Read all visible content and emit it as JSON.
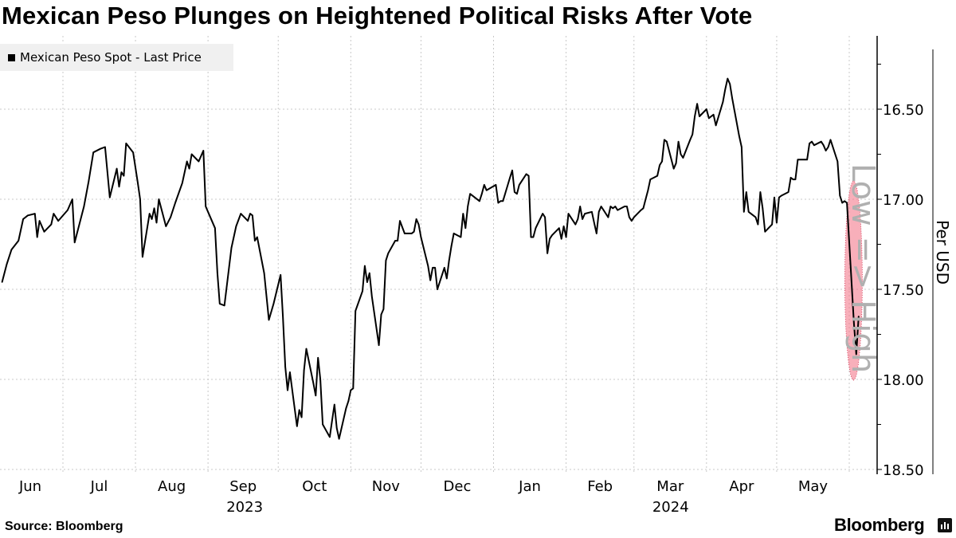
{
  "title": "Mexican Peso Plunges on Heightened Political Risks After Vote",
  "source": "Source: Bloomberg",
  "brand": "Bloomberg",
  "chart_data": {
    "type": "line",
    "title": "Mexican Peso Plunges on Heightened Political Risks After Vote",
    "ylabel": "Per USD",
    "y_direction_note": "Low => High",
    "y_inverted": true,
    "ylim": [
      16.09,
      18.51
    ],
    "yticks": [
      "16.50",
      "17.00",
      "17.50",
      "18.00",
      "18.50"
    ],
    "ytick_values": [
      16.5,
      17.0,
      17.5,
      18.0,
      18.5
    ],
    "xtick_labels": [
      "Jun",
      "Jul",
      "Aug",
      "Sep",
      "Oct",
      "Nov",
      "Dec",
      "Jan",
      "Feb",
      "Mar",
      "Apr",
      "May"
    ],
    "xtick_months": [
      "2023-06",
      "2023-07",
      "2023-08",
      "2023-09",
      "2023-10",
      "2023-11",
      "2023-12",
      "2024-01",
      "2024-02",
      "2024-03",
      "2024-04",
      "2024-05"
    ],
    "year_labels": [
      {
        "label": "2023",
        "month": "2023-09"
      },
      {
        "label": "2024",
        "month": "2024-03"
      }
    ],
    "grid": true,
    "legend": {
      "position": "top-left",
      "entries": [
        "Mexican Peso Spot - Last Price"
      ]
    },
    "highlight": {
      "from": "2024-05-31",
      "to": "2024-06-05",
      "color": "#f47a8c"
    },
    "line_color": "#000000",
    "series": [
      {
        "name": "Mexican Peso Spot - Last Price",
        "points": [
          [
            "2023-06-05",
            17.46
          ],
          [
            "2023-06-07",
            17.36
          ],
          [
            "2023-06-09",
            17.28
          ],
          [
            "2023-06-12",
            17.23
          ],
          [
            "2023-06-14",
            17.11
          ],
          [
            "2023-06-16",
            17.09
          ],
          [
            "2023-06-19",
            17.08
          ],
          [
            "2023-06-20",
            17.21
          ],
          [
            "2023-06-21",
            17.12
          ],
          [
            "2023-06-23",
            17.18
          ],
          [
            "2023-06-26",
            17.14
          ],
          [
            "2023-06-27",
            17.08
          ],
          [
            "2023-06-29",
            17.12
          ],
          [
            "2023-07-03",
            17.06
          ],
          [
            "2023-07-05",
            17.0
          ],
          [
            "2023-07-06",
            17.24
          ],
          [
            "2023-07-10",
            17.04
          ],
          [
            "2023-07-12",
            16.9
          ],
          [
            "2023-07-14",
            16.74
          ],
          [
            "2023-07-17",
            16.72
          ],
          [
            "2023-07-19",
            16.71
          ],
          [
            "2023-07-21",
            16.99
          ],
          [
            "2023-07-24",
            16.83
          ],
          [
            "2023-07-25",
            16.93
          ],
          [
            "2023-07-26",
            16.85
          ],
          [
            "2023-07-27",
            16.87
          ],
          [
            "2023-07-28",
            16.69
          ],
          [
            "2023-07-31",
            16.74
          ],
          [
            "2023-08-02",
            16.91
          ],
          [
            "2023-08-03",
            17.0
          ],
          [
            "2023-08-04",
            17.32
          ],
          [
            "2023-08-07",
            17.08
          ],
          [
            "2023-08-08",
            17.11
          ],
          [
            "2023-08-09",
            17.05
          ],
          [
            "2023-08-10",
            17.13
          ],
          [
            "2023-08-11",
            17.0
          ],
          [
            "2023-08-14",
            17.15
          ],
          [
            "2023-08-16",
            17.1
          ],
          [
            "2023-08-18",
            17.02
          ],
          [
            "2023-08-21",
            16.91
          ],
          [
            "2023-08-23",
            16.79
          ],
          [
            "2023-08-24",
            16.83
          ],
          [
            "2023-08-25",
            16.75
          ],
          [
            "2023-08-28",
            16.79
          ],
          [
            "2023-08-30",
            16.73
          ],
          [
            "2023-08-31",
            17.04
          ],
          [
            "2023-09-01",
            17.07
          ],
          [
            "2023-09-04",
            17.16
          ],
          [
            "2023-09-05",
            17.41
          ],
          [
            "2023-09-06",
            17.58
          ],
          [
            "2023-09-08",
            17.59
          ],
          [
            "2023-09-11",
            17.27
          ],
          [
            "2023-09-13",
            17.15
          ],
          [
            "2023-09-15",
            17.08
          ],
          [
            "2023-09-18",
            17.12
          ],
          [
            "2023-09-19",
            17.08
          ],
          [
            "2023-09-20",
            17.09
          ],
          [
            "2023-09-21",
            17.23
          ],
          [
            "2023-09-22",
            17.21
          ],
          [
            "2023-09-25",
            17.41
          ],
          [
            "2023-09-27",
            17.67
          ],
          [
            "2023-09-29",
            17.58
          ],
          [
            "2023-10-02",
            17.42
          ],
          [
            "2023-10-03",
            17.65
          ],
          [
            "2023-10-04",
            17.93
          ],
          [
            "2023-10-05",
            18.06
          ],
          [
            "2023-10-06",
            17.96
          ],
          [
            "2023-10-09",
            18.26
          ],
          [
            "2023-10-10",
            18.17
          ],
          [
            "2023-10-11",
            18.21
          ],
          [
            "2023-10-12",
            17.95
          ],
          [
            "2023-10-13",
            17.83
          ],
          [
            "2023-10-16",
            18.02
          ],
          [
            "2023-10-17",
            18.09
          ],
          [
            "2023-10-18",
            17.88
          ],
          [
            "2023-10-19",
            18.0
          ],
          [
            "2023-10-20",
            18.25
          ],
          [
            "2023-10-23",
            18.32
          ],
          [
            "2023-10-24",
            18.23
          ],
          [
            "2023-10-25",
            18.14
          ],
          [
            "2023-10-26",
            18.27
          ],
          [
            "2023-10-27",
            18.33
          ],
          [
            "2023-10-30",
            18.16
          ],
          [
            "2023-10-31",
            18.12
          ],
          [
            "2023-11-01",
            18.06
          ],
          [
            "2023-11-02",
            18.05
          ],
          [
            "2023-11-03",
            17.62
          ],
          [
            "2023-11-06",
            17.51
          ],
          [
            "2023-11-07",
            17.37
          ],
          [
            "2023-11-08",
            17.46
          ],
          [
            "2023-11-09",
            17.41
          ],
          [
            "2023-11-10",
            17.54
          ],
          [
            "2023-11-13",
            17.81
          ],
          [
            "2023-11-14",
            17.64
          ],
          [
            "2023-11-15",
            17.61
          ],
          [
            "2023-11-16",
            17.34
          ],
          [
            "2023-11-17",
            17.3
          ],
          [
            "2023-11-20",
            17.23
          ],
          [
            "2023-11-21",
            17.23
          ],
          [
            "2023-11-22",
            17.12
          ],
          [
            "2023-11-24",
            17.19
          ],
          [
            "2023-11-27",
            17.19
          ],
          [
            "2023-11-28",
            17.18
          ],
          [
            "2023-11-29",
            17.11
          ],
          [
            "2023-11-30",
            17.14
          ],
          [
            "2023-12-01",
            17.21
          ],
          [
            "2023-12-04",
            17.37
          ],
          [
            "2023-12-05",
            17.45
          ],
          [
            "2023-12-06",
            17.38
          ],
          [
            "2023-12-07",
            17.38
          ],
          [
            "2023-12-08",
            17.5
          ],
          [
            "2023-12-11",
            17.38
          ],
          [
            "2023-12-12",
            17.44
          ],
          [
            "2023-12-13",
            17.34
          ],
          [
            "2023-12-14",
            17.26
          ],
          [
            "2023-12-15",
            17.19
          ],
          [
            "2023-12-18",
            17.21
          ],
          [
            "2023-12-19",
            17.08
          ],
          [
            "2023-12-20",
            17.16
          ],
          [
            "2023-12-21",
            17.04
          ],
          [
            "2023-12-22",
            16.97
          ],
          [
            "2023-12-26",
            17.01
          ],
          [
            "2023-12-27",
            16.97
          ],
          [
            "2023-12-28",
            16.92
          ],
          [
            "2023-12-29",
            16.95
          ],
          [
            "2024-01-02",
            16.92
          ],
          [
            "2024-01-03",
            17.02
          ],
          [
            "2024-01-04",
            17.01
          ],
          [
            "2024-01-05",
            17.01
          ],
          [
            "2024-01-08",
            16.88
          ],
          [
            "2024-01-09",
            16.84
          ],
          [
            "2024-01-10",
            16.96
          ],
          [
            "2024-01-11",
            16.97
          ],
          [
            "2024-01-12",
            16.92
          ],
          [
            "2024-01-15",
            16.86
          ],
          [
            "2024-01-16",
            16.87
          ],
          [
            "2024-01-17",
            17.21
          ],
          [
            "2024-01-18",
            17.21
          ],
          [
            "2024-01-19",
            17.16
          ],
          [
            "2024-01-22",
            17.08
          ],
          [
            "2024-01-23",
            17.1
          ],
          [
            "2024-01-24",
            17.3
          ],
          [
            "2024-01-25",
            17.22
          ],
          [
            "2024-01-26",
            17.2
          ],
          [
            "2024-01-29",
            17.16
          ],
          [
            "2024-01-30",
            17.22
          ],
          [
            "2024-01-31",
            17.15
          ],
          [
            "2024-02-01",
            17.21
          ],
          [
            "2024-02-02",
            17.08
          ],
          [
            "2024-02-05",
            17.14
          ],
          [
            "2024-02-06",
            17.11
          ],
          [
            "2024-02-07",
            17.04
          ],
          [
            "2024-02-08",
            17.11
          ],
          [
            "2024-02-09",
            17.08
          ],
          [
            "2024-02-12",
            17.07
          ],
          [
            "2024-02-13",
            17.13
          ],
          [
            "2024-02-14",
            17.19
          ],
          [
            "2024-02-15",
            17.07
          ],
          [
            "2024-02-16",
            17.04
          ],
          [
            "2024-02-19",
            17.1
          ],
          [
            "2024-02-20",
            17.04
          ],
          [
            "2024-02-21",
            17.05
          ],
          [
            "2024-02-22",
            17.04
          ],
          [
            "2024-02-23",
            17.06
          ],
          [
            "2024-02-26",
            17.04
          ],
          [
            "2024-02-27",
            17.04
          ],
          [
            "2024-02-28",
            17.1
          ],
          [
            "2024-02-29",
            17.12
          ],
          [
            "2024-03-01",
            17.1
          ],
          [
            "2024-03-04",
            17.06
          ],
          [
            "2024-03-05",
            17.05
          ],
          [
            "2024-03-06",
            17.0
          ],
          [
            "2024-03-07",
            16.95
          ],
          [
            "2024-03-08",
            16.89
          ],
          [
            "2024-03-11",
            16.87
          ],
          [
            "2024-03-12",
            16.81
          ],
          [
            "2024-03-13",
            16.79
          ],
          [
            "2024-03-14",
            16.67
          ],
          [
            "2024-03-15",
            16.68
          ],
          [
            "2024-03-18",
            16.83
          ],
          [
            "2024-03-19",
            16.8
          ],
          [
            "2024-03-20",
            16.68
          ],
          [
            "2024-03-21",
            16.75
          ],
          [
            "2024-03-22",
            16.77
          ],
          [
            "2024-03-25",
            16.67
          ],
          [
            "2024-03-26",
            16.64
          ],
          [
            "2024-03-27",
            16.54
          ],
          [
            "2024-03-28",
            16.47
          ],
          [
            "2024-03-29",
            16.54
          ],
          [
            "2024-04-01",
            16.5
          ],
          [
            "2024-04-02",
            16.55
          ],
          [
            "2024-04-03",
            16.54
          ],
          [
            "2024-04-04",
            16.53
          ],
          [
            "2024-04-05",
            16.59
          ],
          [
            "2024-04-08",
            16.46
          ],
          [
            "2024-04-09",
            16.39
          ],
          [
            "2024-04-10",
            16.33
          ],
          [
            "2024-04-11",
            16.36
          ],
          [
            "2024-04-12",
            16.44
          ],
          [
            "2024-04-15",
            16.65
          ],
          [
            "2024-04-16",
            16.71
          ],
          [
            "2024-04-17",
            17.07
          ],
          [
            "2024-04-18",
            16.96
          ],
          [
            "2024-04-19",
            17.07
          ],
          [
            "2024-04-22",
            17.1
          ],
          [
            "2024-04-23",
            17.14
          ],
          [
            "2024-04-24",
            16.96
          ],
          [
            "2024-04-25",
            17.05
          ],
          [
            "2024-04-26",
            17.18
          ],
          [
            "2024-04-29",
            17.14
          ],
          [
            "2024-04-30",
            16.99
          ],
          [
            "2024-05-01",
            17.13
          ],
          [
            "2024-05-02",
            16.99
          ],
          [
            "2024-05-03",
            16.98
          ],
          [
            "2024-05-06",
            16.96
          ],
          [
            "2024-05-07",
            16.88
          ],
          [
            "2024-05-08",
            16.89
          ],
          [
            "2024-05-09",
            16.89
          ],
          [
            "2024-05-10",
            16.78
          ],
          [
            "2024-05-13",
            16.78
          ],
          [
            "2024-05-14",
            16.78
          ],
          [
            "2024-05-15",
            16.69
          ],
          [
            "2024-05-16",
            16.68
          ],
          [
            "2024-05-17",
            16.7
          ],
          [
            "2024-05-20",
            16.68
          ],
          [
            "2024-05-21",
            16.7
          ],
          [
            "2024-05-22",
            16.73
          ],
          [
            "2024-05-23",
            16.71
          ],
          [
            "2024-05-24",
            16.67
          ],
          [
            "2024-05-27",
            16.79
          ],
          [
            "2024-05-28",
            16.98
          ],
          [
            "2024-05-29",
            17.02
          ],
          [
            "2024-05-30",
            17.01
          ],
          [
            "2024-05-31",
            17.02
          ],
          [
            "2024-06-03",
            17.69
          ],
          [
            "2024-06-04",
            17.86
          ],
          [
            "2024-06-05",
            17.65
          ]
        ]
      }
    ]
  }
}
